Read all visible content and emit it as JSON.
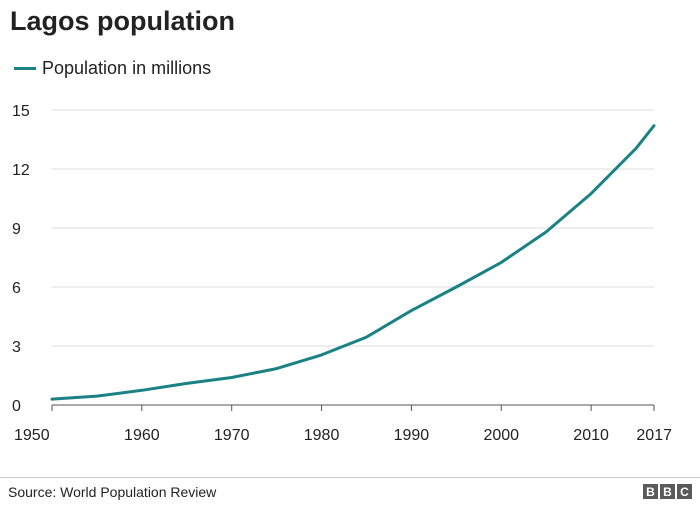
{
  "title": "Lagos population",
  "source": "Source: World Population Review",
  "logo": {
    "letters": [
      "B",
      "B",
      "C"
    ]
  },
  "colors": {
    "series": "#1a8185",
    "grid": "#dddddd",
    "axis": "#555555"
  },
  "chart_data": {
    "type": "line",
    "title": "Lagos population",
    "xlabel": "",
    "ylabel": "",
    "xlim": [
      1950,
      2017
    ],
    "ylim": [
      0,
      15
    ],
    "x_ticks": [
      1950,
      1960,
      1970,
      1980,
      1990,
      2000,
      2010,
      2017
    ],
    "y_ticks": [
      0,
      3,
      6,
      9,
      12,
      15
    ],
    "grid": true,
    "legend": "top-left",
    "series": [
      {
        "name": "Population in millions",
        "x": [
          1950,
          1955,
          1960,
          1965,
          1970,
          1975,
          1980,
          1985,
          1990,
          1995,
          2000,
          2005,
          2010,
          2015,
          2017
        ],
        "y": [
          0.3,
          0.45,
          0.75,
          1.1,
          1.4,
          1.85,
          2.55,
          3.45,
          4.8,
          6.0,
          7.25,
          8.8,
          10.75,
          13.05,
          14.2
        ]
      }
    ]
  }
}
